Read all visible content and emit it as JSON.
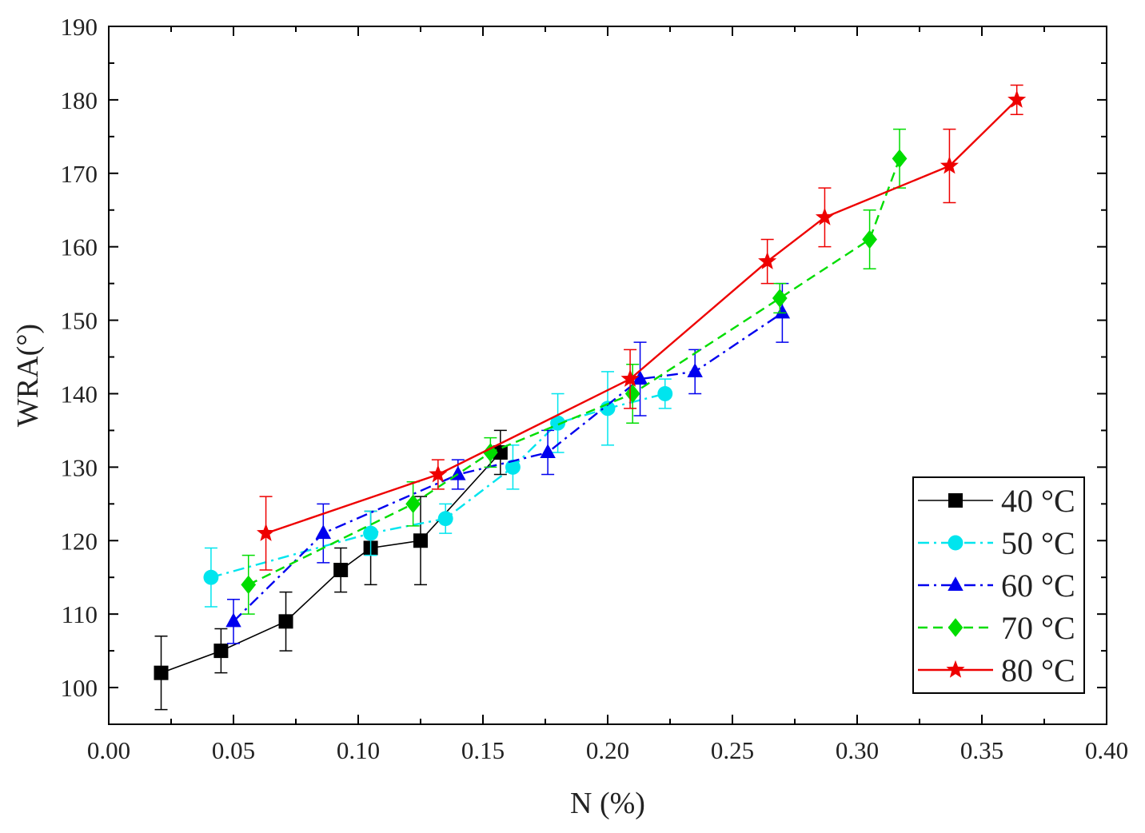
{
  "chart_data": {
    "type": "scatter",
    "title": "",
    "xlabel": "N (%)",
    "ylabel": "WRA(°)",
    "xlim": [
      0.0,
      0.4
    ],
    "ylim": [
      95,
      190
    ],
    "x_ticks": [
      0.0,
      0.05,
      0.1,
      0.15,
      0.2,
      0.25,
      0.3,
      0.35,
      0.4
    ],
    "x_tick_labels": [
      "0.00",
      "0.05",
      "0.10",
      "0.15",
      "0.20",
      "0.25",
      "0.30",
      "0.35",
      "0.40"
    ],
    "y_ticks": [
      100,
      110,
      120,
      130,
      140,
      150,
      160,
      170,
      180,
      190
    ],
    "y_tick_labels": [
      "100",
      "110",
      "120",
      "130",
      "140",
      "150",
      "160",
      "170",
      "180",
      "190"
    ],
    "grid": false,
    "legend_position": "lower-right",
    "series": [
      {
        "name": "40 °C",
        "color": "#000000",
        "marker": "square",
        "line_style": "solid",
        "x": [
          0.021,
          0.045,
          0.071,
          0.093,
          0.105,
          0.125,
          0.157
        ],
        "y": [
          102,
          105,
          109,
          116,
          119,
          120,
          132
        ],
        "err": [
          5,
          3,
          4,
          3,
          5,
          6,
          3
        ]
      },
      {
        "name": "50 °C",
        "color": "#00e5ee",
        "marker": "circle",
        "line_style": "dashdot",
        "x": [
          0.041,
          0.105,
          0.135,
          0.162,
          0.18,
          0.2,
          0.223
        ],
        "y": [
          115,
          121,
          123,
          130,
          136,
          138,
          140
        ],
        "err": [
          4,
          3,
          2,
          3,
          4,
          5,
          2
        ]
      },
      {
        "name": "60 °C",
        "color": "#0000ee",
        "marker": "triangle",
        "line_style": "dashdot",
        "x": [
          0.05,
          0.086,
          0.14,
          0.176,
          0.213,
          0.235,
          0.27
        ],
        "y": [
          109,
          121,
          129,
          132,
          142,
          143,
          151
        ],
        "err": [
          3,
          4,
          2,
          3,
          5,
          3,
          4
        ]
      },
      {
        "name": "70 °C",
        "color": "#00dd00",
        "marker": "diamond",
        "line_style": "dashed",
        "x": [
          0.056,
          0.122,
          0.153,
          0.21,
          0.269,
          0.305,
          0.317
        ],
        "y": [
          114,
          125,
          132,
          140,
          153,
          161,
          172
        ],
        "err": [
          4,
          3,
          2,
          4,
          2,
          4,
          4
        ]
      },
      {
        "name": "80 °C",
        "color": "#ee0000",
        "marker": "star",
        "line_style": "solid",
        "x": [
          0.063,
          0.132,
          0.209,
          0.264,
          0.287,
          0.337,
          0.364
        ],
        "y": [
          121,
          129,
          142,
          158,
          164,
          171,
          180
        ],
        "err": [
          5,
          2,
          4,
          3,
          4,
          5,
          2
        ]
      }
    ]
  }
}
